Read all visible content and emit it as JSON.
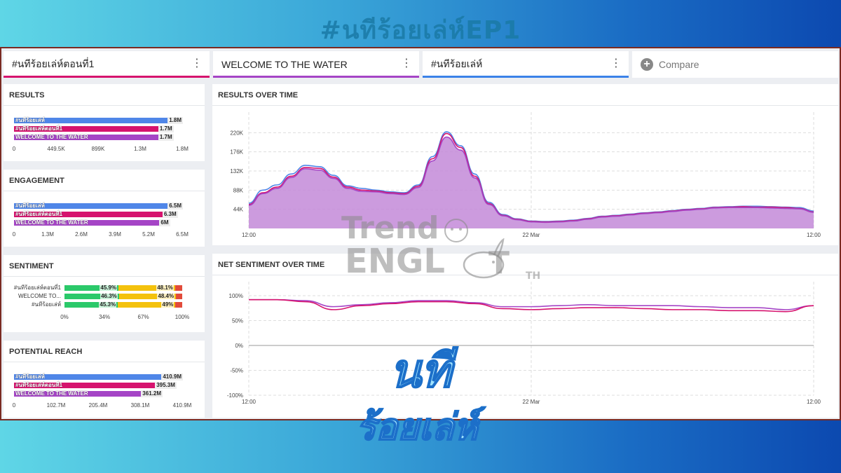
{
  "page_title": "#นทีร้อยเล่ห์EP1",
  "tabs": [
    {
      "label": "#นทีร้อยเล่ห์ตอนที่1",
      "color": "#d6136e"
    },
    {
      "label": "WELCOME TO THE WATER",
      "color": "#a545c6"
    },
    {
      "label": "#นทีร้อยเล่ห์",
      "color": "#3b82e8"
    }
  ],
  "compare": {
    "label": "Compare",
    "icon": "plus-circle-icon"
  },
  "colors": {
    "blue": "#4f86e8",
    "pink": "#d6136e",
    "purple": "#a545c6",
    "green": "#2bc96a",
    "yellow": "#f4c20d",
    "red": "#e24b3b"
  },
  "results": {
    "title": "RESULTS",
    "bars": [
      {
        "name": "#นทีร้อยเล่ห์",
        "value": 1.8,
        "label": "1.8M",
        "color": "#4f86e8"
      },
      {
        "name": "#นทีร้อยเล่ห์ตอนที่1",
        "value": 1.7,
        "label": "1.7M",
        "color": "#d6136e"
      },
      {
        "name": "WELCOME TO THE WATER",
        "value": 1.7,
        "label": "1.7M",
        "color": "#a545c6"
      }
    ],
    "max": 1.8,
    "axis": [
      "0",
      "449.5K",
      "899K",
      "1.3M",
      "1.8M"
    ]
  },
  "engagement": {
    "title": "ENGAGEMENT",
    "bars": [
      {
        "name": "#นทีร้อยเล่ห์",
        "value": 6.5,
        "label": "6.5M",
        "color": "#4f86e8"
      },
      {
        "name": "#นทีร้อยเล่ห์ตอนที่1",
        "value": 6.3,
        "label": "6.3M",
        "color": "#d6136e"
      },
      {
        "name": "WELCOME TO THE WATER",
        "value": 6.0,
        "label": "6M",
        "color": "#a545c6"
      }
    ],
    "max": 6.5,
    "axis": [
      "0",
      "1.3M",
      "2.6M",
      "3.9M",
      "5.2M",
      "6.5M"
    ]
  },
  "sentiment": {
    "title": "SENTIMENT",
    "rows": [
      {
        "name": "#นทีร้อยเล่ห์ตอนที่1",
        "positive": 45.9,
        "neutral": 48.1,
        "pos_label": "45.9%",
        "neu_label": "48.1%"
      },
      {
        "name": "WELCOME TO...",
        "positive": 46.3,
        "neutral": 48.4,
        "pos_label": "46.3%",
        "neu_label": "48.4%"
      },
      {
        "name": "#นทีร้อยเล่ห์",
        "positive": 45.3,
        "neutral": 49.0,
        "pos_label": "45.3%",
        "neu_label": "49%"
      }
    ],
    "axis": [
      "0%",
      "34%",
      "67%",
      "100%"
    ]
  },
  "reach": {
    "title": "POTENTIAL REACH",
    "bars": [
      {
        "name": "#นทีร้อยเล่ห์",
        "value": 410.9,
        "label": "410.9M",
        "color": "#4f86e8"
      },
      {
        "name": "#นทีร้อยเล่ห์ตอนที่1",
        "value": 395.3,
        "label": "395.3M",
        "color": "#d6136e"
      },
      {
        "name": "WELCOME TO THE WATER",
        "value": 361.2,
        "label": "361.2M",
        "color": "#a545c6"
      }
    ],
    "max": 410.9,
    "axis": [
      "0",
      "102.7M",
      "205.4M",
      "308.1M",
      "410.9M"
    ]
  },
  "chart_data": [
    {
      "type": "area",
      "title": "RESULTS OVER TIME",
      "x_ticks": [
        "12:00",
        "22 Mar",
        "12:00"
      ],
      "y_ticks": [
        "220K",
        "176K",
        "132K",
        "88K",
        "44K"
      ],
      "ylim": [
        0,
        235000
      ],
      "x_index": [
        0,
        1,
        2,
        3,
        4,
        5,
        6,
        7,
        8,
        9,
        10,
        11,
        12,
        13,
        14,
        15,
        16,
        17,
        18,
        19,
        20,
        21,
        22,
        23,
        24,
        25,
        26,
        27,
        28,
        29,
        30,
        31,
        32,
        33,
        34,
        35,
        36,
        37,
        38,
        39,
        40
      ],
      "series": [
        {
          "name": "#นทีร้อยเล่ห์",
          "color": "#4f86e8",
          "values": [
            58000,
            88000,
            100000,
            125000,
            145000,
            142000,
            122000,
            98000,
            92000,
            88000,
            84000,
            82000,
            100000,
            165000,
            222000,
            190000,
            125000,
            60000,
            32000,
            22000,
            17000,
            16000,
            17000,
            19000,
            23000,
            28000,
            30000,
            33000,
            36000,
            38000,
            41000,
            44000,
            46000,
            49000,
            50000,
            51000,
            51000,
            50000,
            49000,
            48000,
            40000
          ]
        },
        {
          "name": "#นทีร้อยเล่ห์ตอนที่1",
          "color": "#d6136e",
          "values": [
            55000,
            82000,
            95000,
            120000,
            140000,
            138000,
            118000,
            95000,
            88000,
            86000,
            82000,
            80000,
            97000,
            160000,
            218000,
            186000,
            120000,
            57000,
            30000,
            21000,
            16000,
            15000,
            16000,
            18000,
            22000,
            27000,
            29000,
            32000,
            35000,
            37000,
            40000,
            43000,
            45000,
            48000,
            49000,
            50000,
            49000,
            49000,
            48000,
            46000,
            38000
          ]
        },
        {
          "name": "WELCOME TO THE WATER",
          "color": "#a545c6",
          "values": [
            53000,
            80000,
            92000,
            117000,
            137000,
            134000,
            115000,
            92000,
            85000,
            84000,
            80000,
            78000,
            94000,
            155000,
            210000,
            180000,
            116000,
            55000,
            29000,
            20000,
            15000,
            14000,
            15000,
            17000,
            21000,
            26000,
            28000,
            31000,
            34000,
            36000,
            39000,
            42000,
            44000,
            47000,
            48000,
            48000,
            48000,
            47000,
            46000,
            45000,
            37000
          ]
        }
      ]
    },
    {
      "type": "line",
      "title": "NET SENTIMENT OVER TIME",
      "x_ticks": [
        "12:00",
        "22 Mar",
        "12:00"
      ],
      "y_ticks": [
        "100%",
        "50%",
        "0%",
        "-50%",
        "-100%"
      ],
      "ylim": [
        -100,
        100
      ],
      "x_index": [
        0,
        1,
        2,
        3,
        4,
        5,
        6,
        7,
        8,
        9,
        10,
        11,
        12,
        13,
        14,
        15,
        16,
        17,
        18,
        19,
        20
      ],
      "series": [
        {
          "name": "#นทีร้อยเล่ห์",
          "color": "#a545c6",
          "values": [
            92,
            92,
            90,
            78,
            82,
            86,
            90,
            90,
            86,
            78,
            78,
            80,
            82,
            80,
            80,
            80,
            78,
            76,
            76,
            72,
            80
          ]
        },
        {
          "name": "#นทีร้อยเล่ห์ตอนที่1",
          "color": "#d6136e",
          "values": [
            92,
            92,
            88,
            72,
            80,
            84,
            88,
            88,
            84,
            74,
            72,
            74,
            76,
            76,
            74,
            72,
            72,
            70,
            70,
            68,
            80
          ]
        }
      ]
    }
  ],
  "watermark": {
    "line1": "Trend",
    "line2": "ENGL",
    "line3": "T",
    "suffix": "TH"
  },
  "logo_text": "นที ร้อยเล่ห์"
}
